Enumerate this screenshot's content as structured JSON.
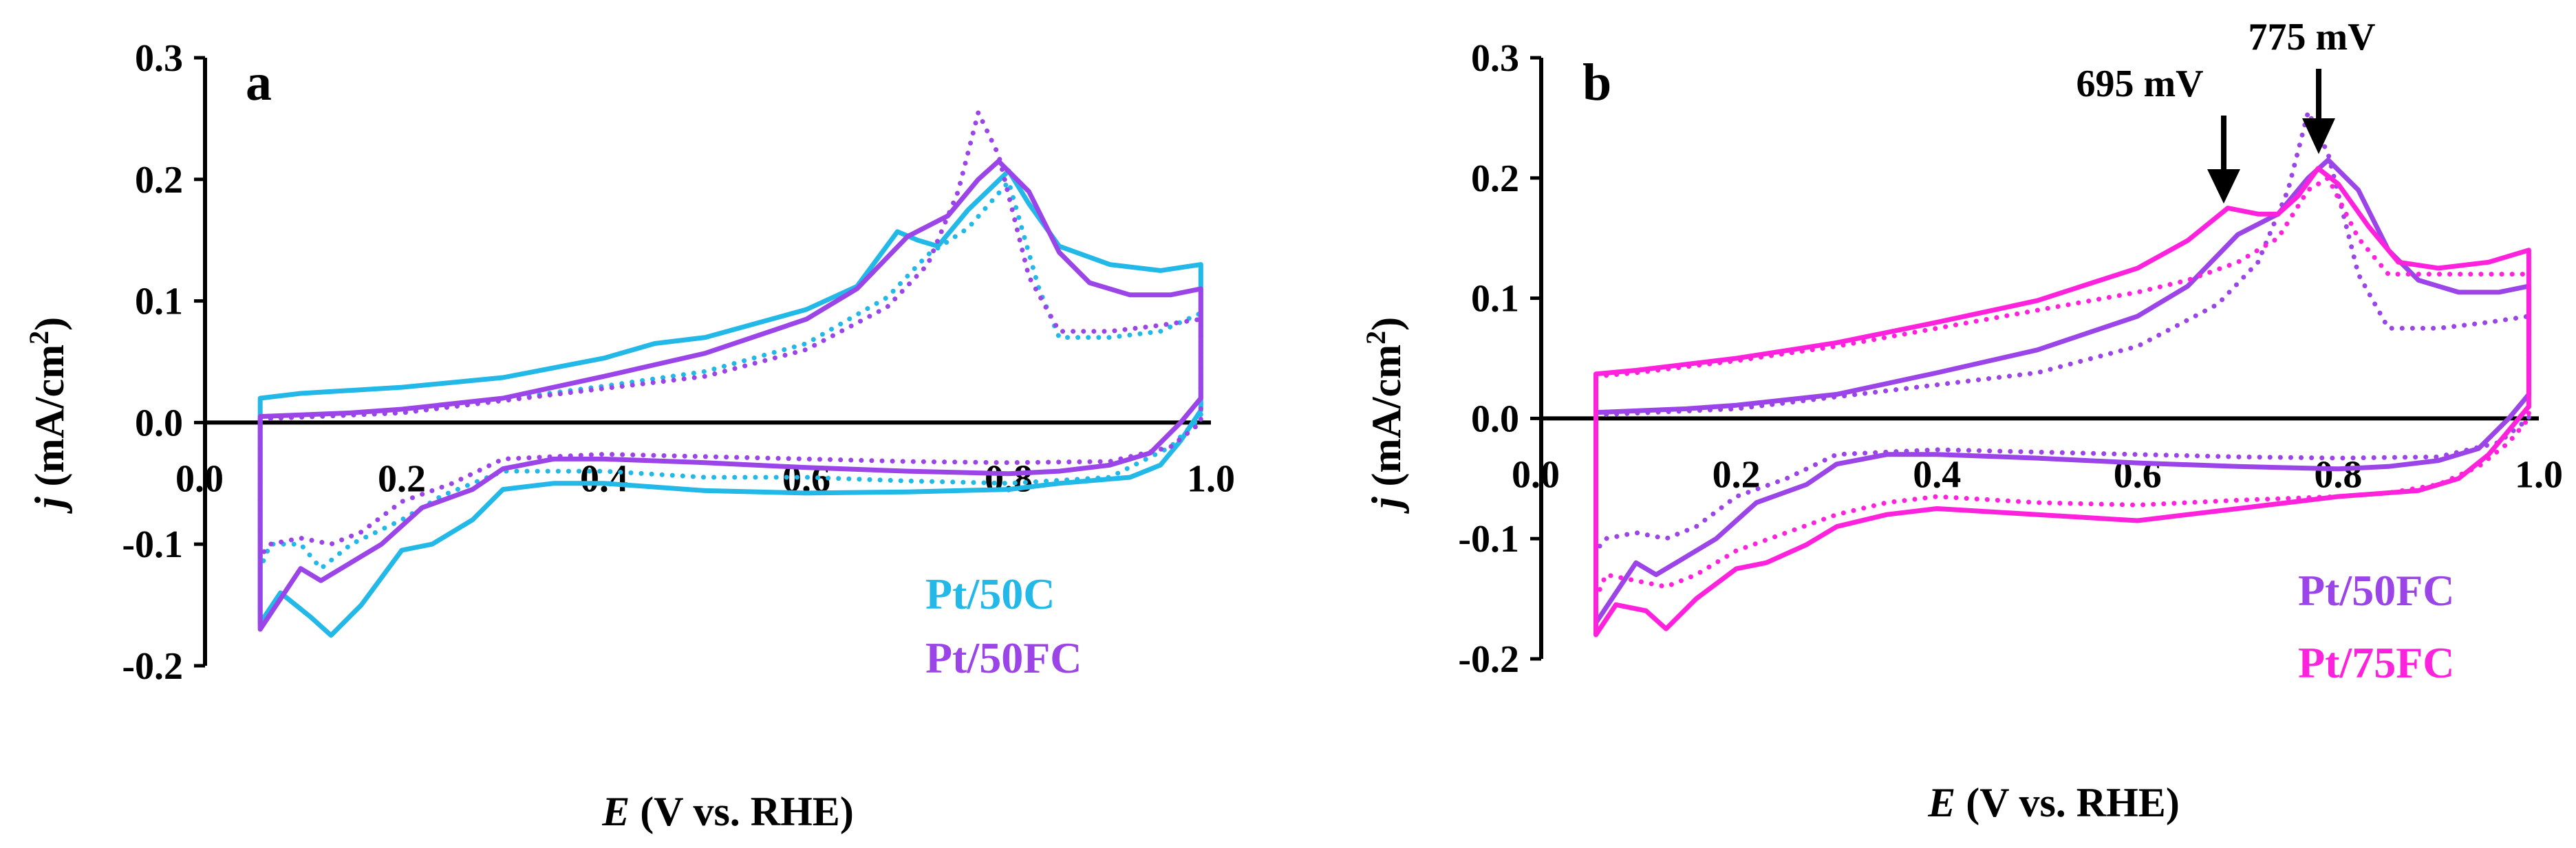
{
  "chart_data": [
    {
      "panel": "a",
      "type": "line",
      "xlabel_italic": "E",
      "xlabel_rest": "(V vs. RHE)",
      "ylabel_italic": "j",
      "ylabel_rest": "(mA/cm",
      "ylabel_sup": "2",
      "ylabel_end": ")",
      "xlim": [
        0,
        1.0
      ],
      "ylim": [
        -0.2,
        0.3
      ],
      "x_ticks": [
        "0.0",
        "0.2",
        "0.4",
        "0.6",
        "0.8",
        "1.0"
      ],
      "y_ticks": [
        "0.3",
        "0.2",
        "0.1",
        "0.0",
        "-0.1",
        "-0.2"
      ],
      "legend": [
        {
          "label": "Pt/50C",
          "color": "#22b8e8"
        },
        {
          "label": "Pt/50FC",
          "color": "#9b45e8"
        }
      ],
      "series": [
        {
          "name": "Pt/50C",
          "color": "#22b8e8",
          "style": "solid",
          "anodic_x": [
            0.06,
            0.1,
            0.2,
            0.3,
            0.4,
            0.45,
            0.5,
            0.6,
            0.65,
            0.69,
            0.71,
            0.73,
            0.76,
            0.8,
            0.82,
            0.85,
            0.9,
            0.95,
            0.99
          ],
          "anodic_y": [
            0.02,
            0.024,
            0.029,
            0.037,
            0.053,
            0.065,
            0.07,
            0.093,
            0.112,
            0.157,
            0.15,
            0.145,
            0.175,
            0.207,
            0.18,
            0.145,
            0.13,
            0.125,
            0.13
          ],
          "cathodic_x": [
            0.99,
            0.97,
            0.95,
            0.92,
            0.85,
            0.8,
            0.7,
            0.6,
            0.5,
            0.4,
            0.35,
            0.3,
            0.27,
            0.23,
            0.2,
            0.16,
            0.13,
            0.11,
            0.08,
            0.06
          ],
          "cathodic_y": [
            0.01,
            -0.015,
            -0.035,
            -0.045,
            -0.05,
            -0.055,
            -0.057,
            -0.058,
            -0.056,
            -0.05,
            -0.05,
            -0.055,
            -0.08,
            -0.1,
            -0.105,
            -0.15,
            -0.175,
            -0.16,
            -0.14,
            -0.165
          ]
        },
        {
          "name": "Pt/50C",
          "color": "#22b8e8",
          "style": "dotted",
          "anodic_x": [
            0.06,
            0.2,
            0.4,
            0.5,
            0.6,
            0.68,
            0.72,
            0.76,
            0.8,
            0.83,
            0.85,
            0.9,
            0.95,
            0.99
          ],
          "anodic_y": [
            0.003,
            0.008,
            0.03,
            0.042,
            0.065,
            0.103,
            0.138,
            0.16,
            0.198,
            0.11,
            0.07,
            0.07,
            0.075,
            0.09
          ],
          "cathodic_x": [
            0.99,
            0.96,
            0.9,
            0.8,
            0.7,
            0.6,
            0.5,
            0.4,
            0.3,
            0.24,
            0.2,
            0.15,
            0.12,
            0.1,
            0.07,
            0.06
          ],
          "cathodic_y": [
            0.005,
            -0.02,
            -0.045,
            -0.05,
            -0.048,
            -0.045,
            -0.045,
            -0.04,
            -0.04,
            -0.06,
            -0.08,
            -0.1,
            -0.12,
            -0.1,
            -0.1,
            -0.12
          ]
        },
        {
          "name": "Pt/50FC",
          "color": "#9b45e8",
          "style": "solid",
          "anodic_x": [
            0.06,
            0.15,
            0.2,
            0.3,
            0.4,
            0.5,
            0.6,
            0.65,
            0.7,
            0.74,
            0.77,
            0.79,
            0.82,
            0.85,
            0.88,
            0.92,
            0.96,
            0.99
          ],
          "anodic_y": [
            0.005,
            0.008,
            0.011,
            0.02,
            0.038,
            0.057,
            0.085,
            0.11,
            0.153,
            0.17,
            0.2,
            0.215,
            0.19,
            0.14,
            0.115,
            0.105,
            0.105,
            0.11
          ],
          "cathodic_x": [
            0.99,
            0.97,
            0.94,
            0.9,
            0.85,
            0.8,
            0.7,
            0.6,
            0.5,
            0.4,
            0.35,
            0.3,
            0.27,
            0.22,
            0.18,
            0.14,
            0.12,
            0.1,
            0.08,
            0.06
          ],
          "cathodic_y": [
            0.02,
            0.0,
            -0.025,
            -0.035,
            -0.04,
            -0.042,
            -0.04,
            -0.037,
            -0.033,
            -0.03,
            -0.03,
            -0.038,
            -0.055,
            -0.07,
            -0.1,
            -0.12,
            -0.13,
            -0.12,
            -0.145,
            -0.17
          ]
        },
        {
          "name": "Pt/50FC",
          "color": "#9b45e8",
          "style": "dotted",
          "anodic_x": [
            0.06,
            0.2,
            0.4,
            0.5,
            0.6,
            0.68,
            0.72,
            0.75,
            0.77,
            0.79,
            0.82,
            0.85,
            0.9,
            0.95,
            0.99
          ],
          "anodic_y": [
            0.003,
            0.008,
            0.028,
            0.038,
            0.06,
            0.095,
            0.13,
            0.19,
            0.255,
            0.22,
            0.12,
            0.075,
            0.075,
            0.08,
            0.085
          ],
          "cathodic_x": [
            0.99,
            0.96,
            0.9,
            0.8,
            0.7,
            0.6,
            0.5,
            0.4,
            0.3,
            0.25,
            0.2,
            0.16,
            0.13,
            0.1,
            0.07,
            0.06
          ],
          "cathodic_y": [
            0.0,
            -0.02,
            -0.032,
            -0.033,
            -0.032,
            -0.03,
            -0.028,
            -0.026,
            -0.03,
            -0.05,
            -0.065,
            -0.09,
            -0.1,
            -0.095,
            -0.1,
            -0.11
          ]
        }
      ]
    },
    {
      "panel": "b",
      "type": "line",
      "xlabel_italic": "E",
      "xlabel_rest": "(V vs. RHE)",
      "ylabel_italic": "j",
      "ylabel_rest": "(mA/cm",
      "ylabel_sup": "2",
      "ylabel_end": ")",
      "xlim": [
        0,
        1.0
      ],
      "ylim": [
        -0.2,
        0.3
      ],
      "x_ticks": [
        "0.0",
        "0.2",
        "0.4",
        "0.6",
        "0.8",
        "1.0"
      ],
      "y_ticks": [
        "0.3",
        "0.2",
        "0.1",
        "0.0",
        "-0.1",
        "-0.2"
      ],
      "legend": [
        {
          "label": "Pt/50FC",
          "color": "#9b45e8"
        },
        {
          "label": "Pt/75FC",
          "color": "#ff22dd"
        }
      ],
      "annotations": [
        {
          "text": "695 mV",
          "x": 0.695
        },
        {
          "text": "775 mV",
          "x": 0.775
        }
      ],
      "series": [
        {
          "name": "Pt/50FC",
          "color": "#9b45e8",
          "style": "solid",
          "anodic_x": [
            0.06,
            0.15,
            0.2,
            0.3,
            0.4,
            0.5,
            0.6,
            0.65,
            0.7,
            0.74,
            0.77,
            0.79,
            0.82,
            0.85,
            0.88,
            0.92,
            0.96,
            0.99
          ],
          "anodic_y": [
            0.005,
            0.008,
            0.011,
            0.02,
            0.038,
            0.057,
            0.085,
            0.11,
            0.153,
            0.17,
            0.2,
            0.215,
            0.19,
            0.14,
            0.115,
            0.105,
            0.105,
            0.11
          ],
          "cathodic_x": [
            0.99,
            0.97,
            0.94,
            0.9,
            0.85,
            0.8,
            0.7,
            0.6,
            0.5,
            0.4,
            0.35,
            0.3,
            0.27,
            0.22,
            0.18,
            0.14,
            0.12,
            0.1,
            0.08,
            0.06
          ],
          "cathodic_y": [
            0.02,
            0.0,
            -0.025,
            -0.035,
            -0.04,
            -0.042,
            -0.04,
            -0.037,
            -0.033,
            -0.03,
            -0.03,
            -0.038,
            -0.055,
            -0.07,
            -0.1,
            -0.12,
            -0.13,
            -0.12,
            -0.145,
            -0.17
          ]
        },
        {
          "name": "Pt/50FC",
          "color": "#9b45e8",
          "style": "dotted",
          "anodic_x": [
            0.06,
            0.2,
            0.4,
            0.5,
            0.6,
            0.68,
            0.72,
            0.75,
            0.77,
            0.79,
            0.82,
            0.85,
            0.9,
            0.95,
            0.99
          ],
          "anodic_y": [
            0.003,
            0.008,
            0.028,
            0.038,
            0.06,
            0.095,
            0.13,
            0.19,
            0.255,
            0.22,
            0.12,
            0.075,
            0.075,
            0.08,
            0.085
          ],
          "cathodic_x": [
            0.99,
            0.96,
            0.9,
            0.8,
            0.7,
            0.6,
            0.5,
            0.4,
            0.3,
            0.25,
            0.2,
            0.16,
            0.13,
            0.1,
            0.07,
            0.06
          ],
          "cathodic_y": [
            0.0,
            -0.02,
            -0.032,
            -0.033,
            -0.032,
            -0.03,
            -0.028,
            -0.026,
            -0.03,
            -0.05,
            -0.065,
            -0.09,
            -0.1,
            -0.095,
            -0.1,
            -0.11
          ]
        },
        {
          "name": "Pt/75FC",
          "color": "#ff22dd",
          "style": "solid",
          "anodic_x": [
            0.06,
            0.1,
            0.2,
            0.3,
            0.4,
            0.5,
            0.6,
            0.65,
            0.69,
            0.72,
            0.74,
            0.76,
            0.78,
            0.8,
            0.83,
            0.86,
            0.9,
            0.95,
            0.99
          ],
          "anodic_y": [
            0.037,
            0.04,
            0.05,
            0.063,
            0.08,
            0.098,
            0.125,
            0.148,
            0.175,
            0.17,
            0.17,
            0.185,
            0.208,
            0.195,
            0.16,
            0.13,
            0.125,
            0.13,
            0.14
          ],
          "cathodic_x": [
            0.99,
            0.97,
            0.95,
            0.92,
            0.88,
            0.8,
            0.7,
            0.65,
            0.6,
            0.5,
            0.4,
            0.35,
            0.3,
            0.27,
            0.23,
            0.2,
            0.16,
            0.13,
            0.11,
            0.08,
            0.06
          ],
          "cathodic_y": [
            0.01,
            -0.01,
            -0.03,
            -0.05,
            -0.06,
            -0.065,
            -0.075,
            -0.08,
            -0.085,
            -0.08,
            -0.075,
            -0.08,
            -0.09,
            -0.105,
            -0.12,
            -0.125,
            -0.15,
            -0.175,
            -0.16,
            -0.155,
            -0.18
          ]
        },
        {
          "name": "Pt/75FC",
          "color": "#ff22dd",
          "style": "dotted",
          "anodic_x": [
            0.06,
            0.1,
            0.2,
            0.3,
            0.4,
            0.5,
            0.6,
            0.65,
            0.7,
            0.74,
            0.77,
            0.79,
            0.82,
            0.85,
            0.9,
            0.95,
            0.99
          ],
          "anodic_y": [
            0.035,
            0.038,
            0.048,
            0.06,
            0.075,
            0.09,
            0.105,
            0.115,
            0.13,
            0.15,
            0.19,
            0.2,
            0.15,
            0.12,
            0.12,
            0.12,
            0.12
          ],
          "cathodic_x": [
            0.99,
            0.97,
            0.94,
            0.9,
            0.85,
            0.8,
            0.7,
            0.6,
            0.5,
            0.4,
            0.35,
            0.3,
            0.25,
            0.2,
            0.16,
            0.13,
            0.1,
            0.07,
            0.06
          ],
          "cathodic_y": [
            0.0,
            -0.02,
            -0.04,
            -0.055,
            -0.062,
            -0.065,
            -0.068,
            -0.072,
            -0.07,
            -0.065,
            -0.07,
            -0.08,
            -0.095,
            -0.11,
            -0.13,
            -0.14,
            -0.135,
            -0.13,
            -0.15
          ]
        }
      ]
    }
  ]
}
